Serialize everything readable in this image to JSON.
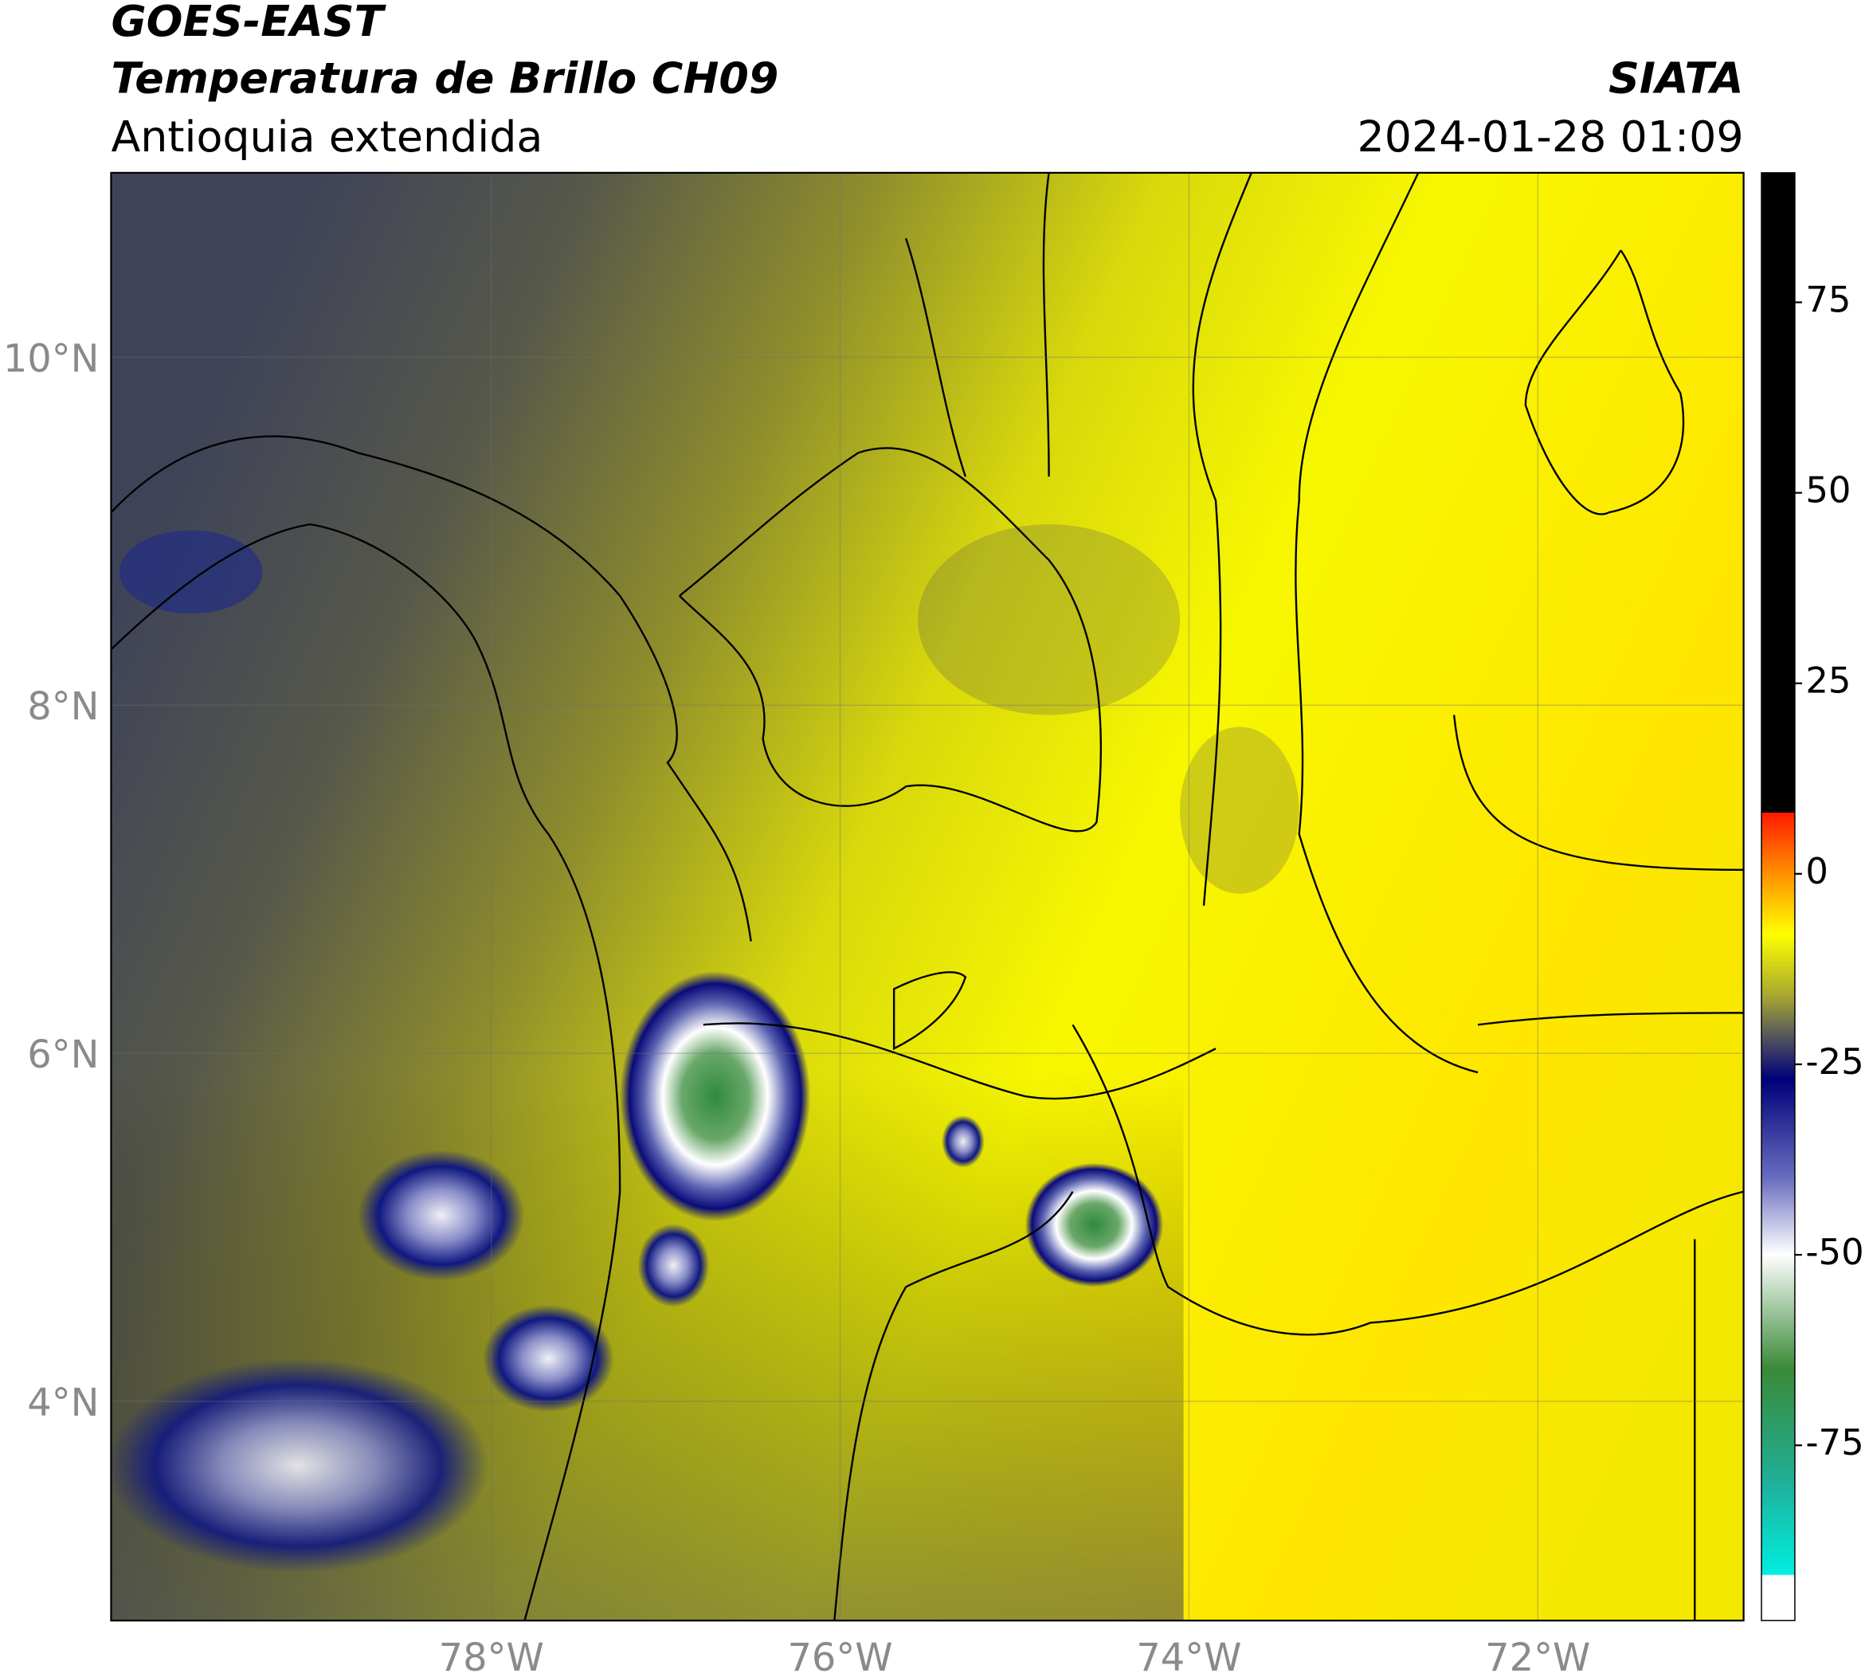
{
  "header": {
    "title_line1": "GOES-EAST",
    "title_line2": "Temperatura de Brillo CH09",
    "subtitle": "Antioquia extendida",
    "source": "SIATA",
    "timestamp": "2024-01-28 01:09"
  },
  "map": {
    "lon_range": [
      -80.18,
      -70.82
    ],
    "lat_range": [
      2.74,
      11.06
    ],
    "lon_ticks": [
      {
        "value": -78,
        "label": "78°W"
      },
      {
        "value": -76,
        "label": "76°W"
      },
      {
        "value": -74,
        "label": "74°W"
      },
      {
        "value": -72,
        "label": "72°W"
      }
    ],
    "lat_ticks": [
      {
        "value": 10,
        "label": "10°N"
      },
      {
        "value": 8,
        "label": "8°N"
      },
      {
        "value": 6,
        "label": "6°N"
      },
      {
        "value": 4,
        "label": "4°N"
      }
    ]
  },
  "colorbar": {
    "range": [
      -98,
      92
    ],
    "ticks": [
      75,
      50,
      25,
      0,
      -25,
      -50,
      -75
    ]
  }
}
